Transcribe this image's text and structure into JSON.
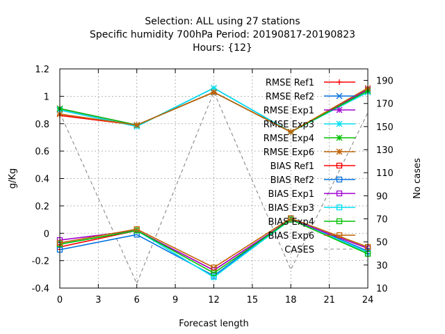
{
  "chart_data": {
    "type": "line",
    "title_lines": [
      "Selection: ALL using    27 stations",
      "Specific humidity 700hPa   Period: 20190817-20190823",
      "Hours: {12}"
    ],
    "xlabel": "Forecast length",
    "ylabel": "g/Kg",
    "y2label": "No cases",
    "x": [
      0,
      6,
      12,
      18,
      24
    ],
    "xlim": [
      0,
      24
    ],
    "xticks": [
      0,
      3,
      6,
      9,
      12,
      15,
      18,
      21,
      24
    ],
    "ylim": [
      -0.4,
      1.2
    ],
    "yticks": [
      -0.4,
      -0.2,
      0,
      0.2,
      0.4,
      0.6,
      0.8,
      1,
      1.2
    ],
    "ytick_labels": [
      "-0.4",
      "-0.2",
      "0",
      "0.2",
      "0.4",
      "0.6",
      "0.8",
      "1",
      "1.2"
    ],
    "y2lim": [
      10,
      200
    ],
    "y2ticks": [
      10,
      30,
      50,
      70,
      90,
      110,
      130,
      150,
      170,
      190
    ],
    "grid": true,
    "legend_position": "top-right",
    "series": [
      {
        "name": "RMSE Ref1",
        "values": [
          0.86,
          0.79,
          1.03,
          0.74,
          1.05
        ],
        "color": "#ff0000",
        "marker": "plus"
      },
      {
        "name": "RMSE Ref2",
        "values": [
          0.9,
          0.78,
          1.06,
          0.74,
          1.03
        ],
        "color": "#0070e0",
        "marker": "cross"
      },
      {
        "name": "RMSE Exp1",
        "values": [
          0.91,
          0.79,
          1.03,
          0.74,
          1.05
        ],
        "color": "#a000d0",
        "marker": "star"
      },
      {
        "name": "RMSE Exp3",
        "values": [
          0.9,
          0.78,
          1.06,
          0.74,
          1.03
        ],
        "color": "#00e0f0",
        "marker": "star"
      },
      {
        "name": "RMSE Exp4",
        "values": [
          0.91,
          0.79,
          1.03,
          0.74,
          1.04
        ],
        "color": "#00c000",
        "marker": "star"
      },
      {
        "name": "RMSE Exp6",
        "values": [
          0.87,
          0.79,
          1.03,
          0.74,
          1.06
        ],
        "color": "#c06000",
        "marker": "star"
      },
      {
        "name": "BIAS Ref1",
        "values": [
          -0.1,
          0.02,
          -0.27,
          0.1,
          -0.11
        ],
        "color": "#ff0000",
        "marker": "square"
      },
      {
        "name": "BIAS Ref2",
        "values": [
          -0.12,
          -0.01,
          -0.31,
          0.11,
          -0.13
        ],
        "color": "#0070e0",
        "marker": "square"
      },
      {
        "name": "BIAS Exp1",
        "values": [
          -0.05,
          0.02,
          -0.27,
          0.1,
          -0.11
        ],
        "color": "#a000d0",
        "marker": "square"
      },
      {
        "name": "BIAS Exp3",
        "values": [
          -0.08,
          0.02,
          -0.32,
          0.1,
          -0.14
        ],
        "color": "#00e0f0",
        "marker": "square"
      },
      {
        "name": "BIAS Exp4",
        "values": [
          -0.08,
          0.02,
          -0.29,
          0.1,
          -0.15
        ],
        "color": "#00c000",
        "marker": "square"
      },
      {
        "name": "BIAS Exp6",
        "values": [
          -0.07,
          0.03,
          -0.25,
          0.11,
          -0.1
        ],
        "color": "#c06000",
        "marker": "square"
      }
    ],
    "cases": {
      "name": "CASES",
      "values": [
        162,
        14,
        180,
        26,
        162
      ],
      "color": "#888888",
      "axis": "y2",
      "dashed": true
    }
  }
}
